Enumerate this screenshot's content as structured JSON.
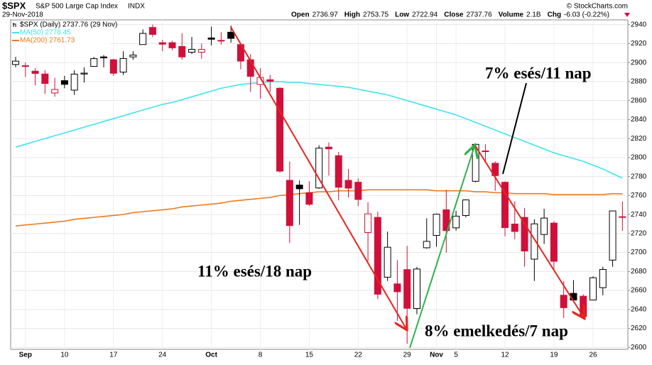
{
  "chart_data": {
    "type": "candlestick",
    "header": {
      "symbol": "$SPX",
      "name": "S&P 500 Large Cap Index",
      "exchange": "INDX",
      "date": "29-Nov-2018",
      "copyright": "© StockCharts.com",
      "quote": [
        "Open",
        "2736.97",
        "High",
        "2753.75",
        "Low",
        "2722.94",
        "Close",
        "2737.76",
        "Volume",
        "2.1B",
        "Chg",
        "-6.03 (-0.22%)"
      ]
    },
    "legend_title": "$SPX (Daily) 2737.76 (29 Nov)",
    "categories": [
      null,
      "Sep",
      null,
      null,
      null,
      "10",
      null,
      null,
      null,
      null,
      "17",
      null,
      null,
      null,
      null,
      "24",
      null,
      null,
      null,
      null,
      "Oct",
      null,
      null,
      null,
      null,
      "8",
      null,
      null,
      null,
      null,
      "15",
      null,
      null,
      null,
      null,
      "22",
      null,
      null,
      null,
      null,
      "29",
      null,
      null,
      "Nov",
      null,
      "5",
      null,
      null,
      null,
      null,
      "12",
      null,
      null,
      null,
      null,
      "19",
      null,
      null,
      null,
      "26",
      null,
      null,
      null
    ],
    "open": [
      2898,
      2896,
      2891,
      2888,
      2868,
      2881,
      2871,
      2888,
      2896,
      2906,
      2903,
      2890,
      2906,
      2919,
      2937,
      2921,
      2921,
      2917,
      2911,
      2911,
      2926,
      2923,
      2932,
      2919,
      2903,
      2877,
      2882,
      2873,
      2776,
      2771,
      2763,
      2768,
      2811,
      2802,
      2776,
      2774,
      2721,
      2737,
      2674,
      2667,
      2682,
      2641,
      2705,
      2718,
      2745,
      2726,
      2739,
      2775,
      2807,
      2794,
      2774,
      2730,
      2737,
      2693,
      2719,
      2731,
      2655,
      2657,
      2654,
      2650,
      2663,
      2692,
      2736.97
    ],
    "high": [
      2906,
      2900,
      2894,
      2892,
      2884,
      2886,
      2892,
      2895,
      2906,
      2908,
      2904,
      2912,
      2912,
      2935,
      2940,
      2924,
      2923,
      2931,
      2927,
      2920,
      2938,
      2932,
      2939,
      2920,
      2909,
      2894,
      2887,
      2874,
      2796,
      2776,
      2775,
      2813,
      2816,
      2806,
      2788,
      2778,
      2753,
      2743,
      2722,
      2692,
      2707,
      2685,
      2736,
      2741,
      2766,
      2744,
      2756,
      2815,
      2814,
      2796,
      2775,
      2754,
      2747,
      2735,
      2746,
      2733,
      2670,
      2671,
      2656,
      2675,
      2685,
      2744,
      2753.75
    ],
    "low": [
      2895,
      2885,
      2876,
      2867,
      2864,
      2873,
      2866,
      2879,
      2896,
      2895,
      2886,
      2887,
      2903,
      2919,
      2927,
      2912,
      2913,
      2903,
      2909,
      2904,
      2918,
      2919,
      2921,
      2893,
      2869,
      2862,
      2869,
      2784,
      2710,
      2729,
      2749,
      2767,
      2781,
      2755,
      2758,
      2749,
      2691,
      2651,
      2670,
      2628,
      2604,
      2635,
      2704,
      2706,
      2700,
      2723,
      2737,
      2774,
      2795,
      2765,
      2717,
      2714,
      2685,
      2670,
      2709,
      2681,
      2631,
      2649,
      2631,
      2650,
      2655,
      2685,
      2722.94
    ],
    "close": [
      2901.52,
      2896.72,
      2888.6,
      2878.05,
      2871.68,
      2877.13,
      2887.89,
      2888.92,
      2904.18,
      2904.98,
      2888.8,
      2904.31,
      2907.95,
      2930.75,
      2929.67,
      2919.37,
      2915.56,
      2905.97,
      2914,
      2913.98,
      2924.59,
      2923.43,
      2925.51,
      2901.61,
      2885.57,
      2884.43,
      2880.34,
      2785.68,
      2728.37,
      2767.13,
      2750.79,
      2809.92,
      2809.21,
      2768.78,
      2767.78,
      2755.88,
      2740.69,
      2656.1,
      2705.57,
      2658.69,
      2641.25,
      2682.63,
      2711.74,
      2740.37,
      2723.06,
      2738.31,
      2755.45,
      2813.89,
      2806.83,
      2781.01,
      2726.22,
      2722.18,
      2701.58,
      2730.2,
      2736.27,
      2690.73,
      2641.89,
      2649.93,
      2632.56,
      2673.45,
      2682.17,
      2743.79,
      2737.76
    ],
    "up_color": "#000000",
    "down_color": "#d0103a",
    "series": [
      {
        "name": "MA(50) 2778.45",
        "color": "#3fe3ee",
        "values": [
          2811,
          2814,
          2817,
          2820,
          2823,
          2826,
          2829,
          2832,
          2835,
          2838,
          2841,
          2844,
          2847,
          2850,
          2853,
          2856,
          2858,
          2861,
          2864,
          2867,
          2870,
          2873,
          2875,
          2877,
          2878,
          2879,
          2880,
          2880,
          2879,
          2879,
          2878,
          2877,
          2876,
          2875,
          2874,
          2872,
          2870,
          2868,
          2866,
          2863,
          2860,
          2857,
          2854,
          2851,
          2848,
          2845,
          2841,
          2837,
          2833,
          2829,
          2825,
          2821,
          2817,
          2813,
          2809,
          2805,
          2802,
          2799,
          2796,
          2792,
          2788,
          2783,
          2778.45
        ]
      },
      {
        "name": "MA(200) 2761.73",
        "color": "#f07a1c",
        "values": [
          2728,
          2729,
          2730,
          2731,
          2732,
          2733,
          2735,
          2736,
          2737,
          2738,
          2739,
          2740,
          2742,
          2743,
          2744,
          2745,
          2746,
          2748,
          2749,
          2750,
          2751,
          2752,
          2754,
          2755,
          2756,
          2757,
          2758,
          2760,
          2761,
          2762,
          2763,
          2764,
          2764,
          2765,
          2765,
          2765,
          2766,
          2766,
          2766,
          2766,
          2766,
          2766,
          2766,
          2765,
          2765,
          2765,
          2765,
          2764,
          2764,
          2763,
          2763,
          2762,
          2762,
          2762,
          2762,
          2761,
          2761,
          2761,
          2761,
          2761,
          2761,
          2762,
          2761.73
        ]
      }
    ],
    "ylim": [
      2598,
      2945
    ],
    "yticks": [
      2600,
      2620,
      2640,
      2660,
      2680,
      2700,
      2720,
      2740,
      2760,
      2780,
      2800,
      2820,
      2840,
      2860,
      2880,
      2900,
      2920,
      2940
    ],
    "grid": true,
    "annotations": [
      "11% esés/18 nap",
      "7% esés/11 nap",
      "8% emelkedés/7 nap"
    ]
  }
}
